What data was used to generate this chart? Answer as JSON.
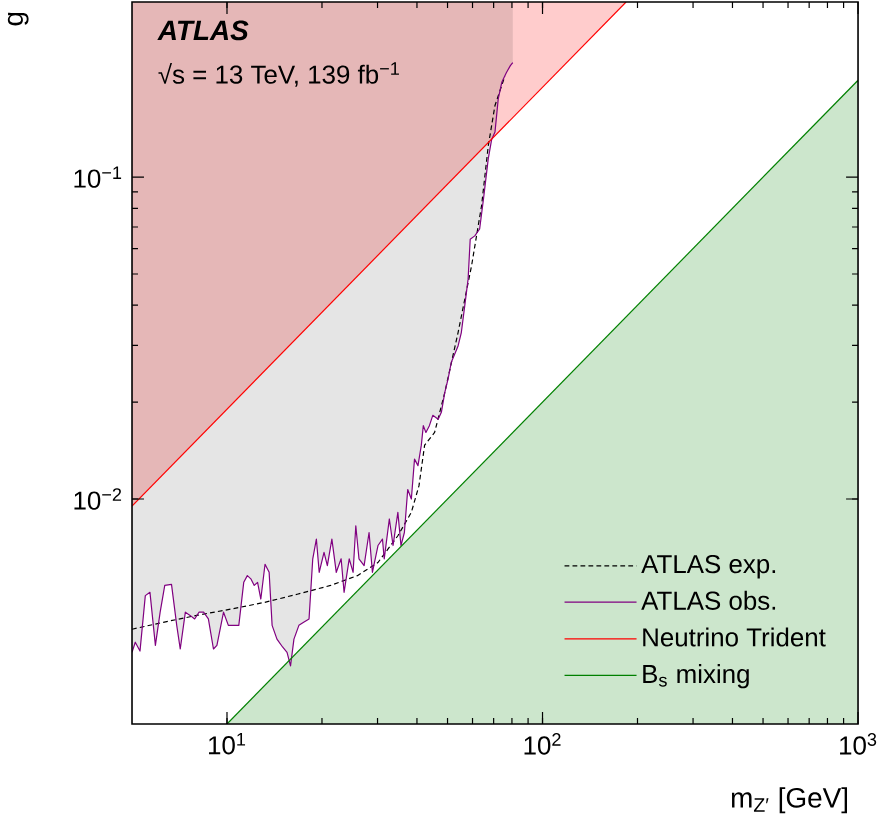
{
  "chart_data": {
    "type": "line",
    "xlabel": "m$_{Z′}$ [GeV]",
    "ylabel": "g",
    "annotations": [
      "ATLAS",
      "√s = 13 TeV, 139 fb$^{−1}$"
    ],
    "log": "xy",
    "xlim": [
      5,
      1000
    ],
    "ylim": [
      0.002,
      0.35
    ],
    "xticks": [
      {
        "value": 10,
        "label": "10$^{1}$"
      },
      {
        "value": 100,
        "label": "10$^{2}$"
      },
      {
        "value": 1000,
        "label": "10$^{3}$"
      }
    ],
    "yticks": [
      {
        "value": 0.01,
        "label": "10$^{−2}$"
      },
      {
        "value": 0.1,
        "label": "10$^{−1}$"
      }
    ],
    "legend": "bottom right",
    "grid": false,
    "series": [
      {
        "name": "ATLAS exp.",
        "color": "#000000",
        "line_style": "dashed",
        "x": [
          5,
          6.28,
          8.02,
          10.3,
          13.1,
          16.7,
          21.3,
          25.9,
          30.1,
          34.8,
          38.4,
          40.6,
          42.3,
          45.5,
          49.0,
          54.0,
          59.6,
          64.1,
          67.3,
          70.7,
          76.0
        ],
        "values": [
          0.00394,
          0.00414,
          0.00435,
          0.00455,
          0.00477,
          0.00506,
          0.00539,
          0.00578,
          0.00635,
          0.00769,
          0.00909,
          0.011,
          0.0147,
          0.0161,
          0.0214,
          0.0329,
          0.0531,
          0.0815,
          0.125,
          0.167,
          0.206
        ]
      },
      {
        "name": "ATLAS obs.",
        "color": "#800080",
        "line_style": "solid",
        "x": [
          5.0,
          5.12,
          5.3,
          5.51,
          5.7,
          5.93,
          6.14,
          6.35,
          6.67,
          6.93,
          7.11,
          7.38,
          7.64,
          7.9,
          8.15,
          8.43,
          8.73,
          9.06,
          9.29,
          9.75,
          10.1,
          10.5,
          10.9,
          11.3,
          11.6,
          11.9,
          12.2,
          12.5,
          12.8,
          13.2,
          13.6,
          13.9,
          14.4,
          15.0,
          15.5,
          15.9,
          16.3,
          16.9,
          17.5,
          18.2,
          18.7,
          19.2,
          19.6,
          20.3,
          20.8,
          21.5,
          22.2,
          23.0,
          23.5,
          24.4,
          25.1,
          25.6,
          26.2,
          27.2,
          28.2,
          28.9,
          30.1,
          31.1,
          31.5,
          32.7,
          33.6,
          34.8,
          35.6,
          36.5,
          37.4,
          38.4,
          39.3,
          40.3,
          41.3,
          41.9,
          42.7,
          43.8,
          44.9,
          46.7,
          47.8,
          49.0,
          50.2,
          51.4,
          54.0,
          55.3,
          56.7,
          58.1,
          59.0,
          61.0,
          63.2,
          65.0,
          67.3,
          69.0,
          70.7,
          72.4,
          74.3,
          76.8,
          79.1,
          80.5
        ],
        "values": [
          0.00334,
          0.00359,
          0.00337,
          0.00501,
          0.00513,
          0.00351,
          0.00445,
          0.00539,
          0.00543,
          0.00405,
          0.00342,
          0.00445,
          0.00435,
          0.00424,
          0.00445,
          0.00445,
          0.00424,
          0.00342,
          0.00351,
          0.00445,
          0.00405,
          0.00405,
          0.00405,
          0.00551,
          0.00578,
          0.00565,
          0.00539,
          0.00551,
          0.00489,
          0.00627,
          0.00592,
          0.00405,
          0.00367,
          0.00347,
          0.00334,
          0.00303,
          0.00367,
          0.00405,
          0.00414,
          0.00424,
          0.00652,
          0.00751,
          0.00592,
          0.00683,
          0.00621,
          0.00751,
          0.00592,
          0.00652,
          0.00513,
          0.00652,
          0.00592,
          0.00826,
          0.00652,
          0.00621,
          0.00787,
          0.00592,
          0.00717,
          0.00751,
          0.00652,
          0.00867,
          0.00717,
          0.00909,
          0.00717,
          0.00787,
          0.0107,
          0.01,
          0.0133,
          0.0127,
          0.0147,
          0.0169,
          0.0161,
          0.0169,
          0.0182,
          0.0177,
          0.0186,
          0.0214,
          0.0236,
          0.0266,
          0.0299,
          0.0329,
          0.0399,
          0.0482,
          0.0641,
          0.0657,
          0.069,
          0.0855,
          0.114,
          0.131,
          0.138,
          0.175,
          0.197,
          0.211,
          0.222,
          0.227
        ]
      },
      {
        "name": "Neutrino Trident",
        "color": "#ff0000",
        "line_style": "solid",
        "x": [
          5,
          184
        ],
        "values": [
          0.0095,
          0.35
        ]
      },
      {
        "name": "B$_{s}$ mixing",
        "type": "area",
        "color": "#008000",
        "line_style": "solid",
        "x": [
          10,
          1000
        ],
        "values": [
          0.002,
          0.2
        ]
      }
    ]
  }
}
